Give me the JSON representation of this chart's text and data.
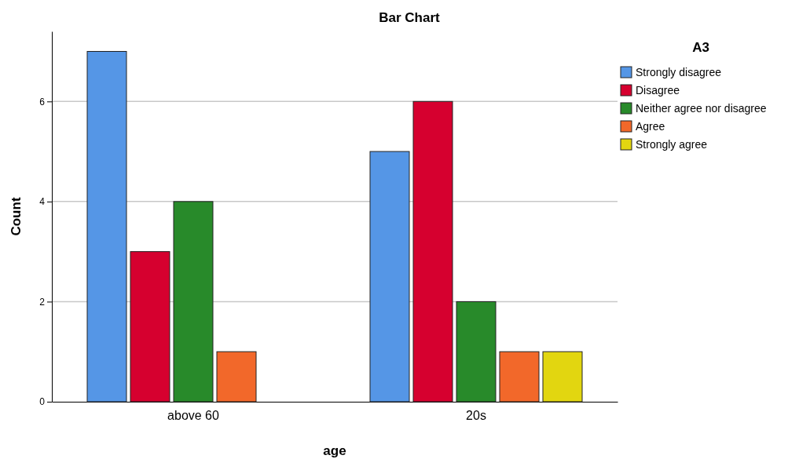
{
  "chart_data": {
    "type": "bar",
    "title": "Bar Chart",
    "xlabel": "age",
    "ylabel": "Count",
    "legend_title": "A3",
    "categories": [
      "above 60",
      "20s"
    ],
    "series": [
      {
        "name": "Strongly disagree",
        "color": "#5596e6",
        "values": [
          7,
          5
        ]
      },
      {
        "name": "Disagree",
        "color": "#d6002f",
        "values": [
          3,
          6
        ]
      },
      {
        "name": "Neither agree nor disagree",
        "color": "#288a2a",
        "values": [
          4,
          2
        ]
      },
      {
        "name": "Agree",
        "color": "#f2682a",
        "values": [
          1,
          1
        ]
      },
      {
        "name": "Strongly agree",
        "color": "#e2d610",
        "values": [
          null,
          1
        ]
      }
    ],
    "ylim": [
      0,
      7.4
    ],
    "yticks": [
      0,
      2,
      4,
      6
    ],
    "grid": "y",
    "legend": "top right"
  }
}
